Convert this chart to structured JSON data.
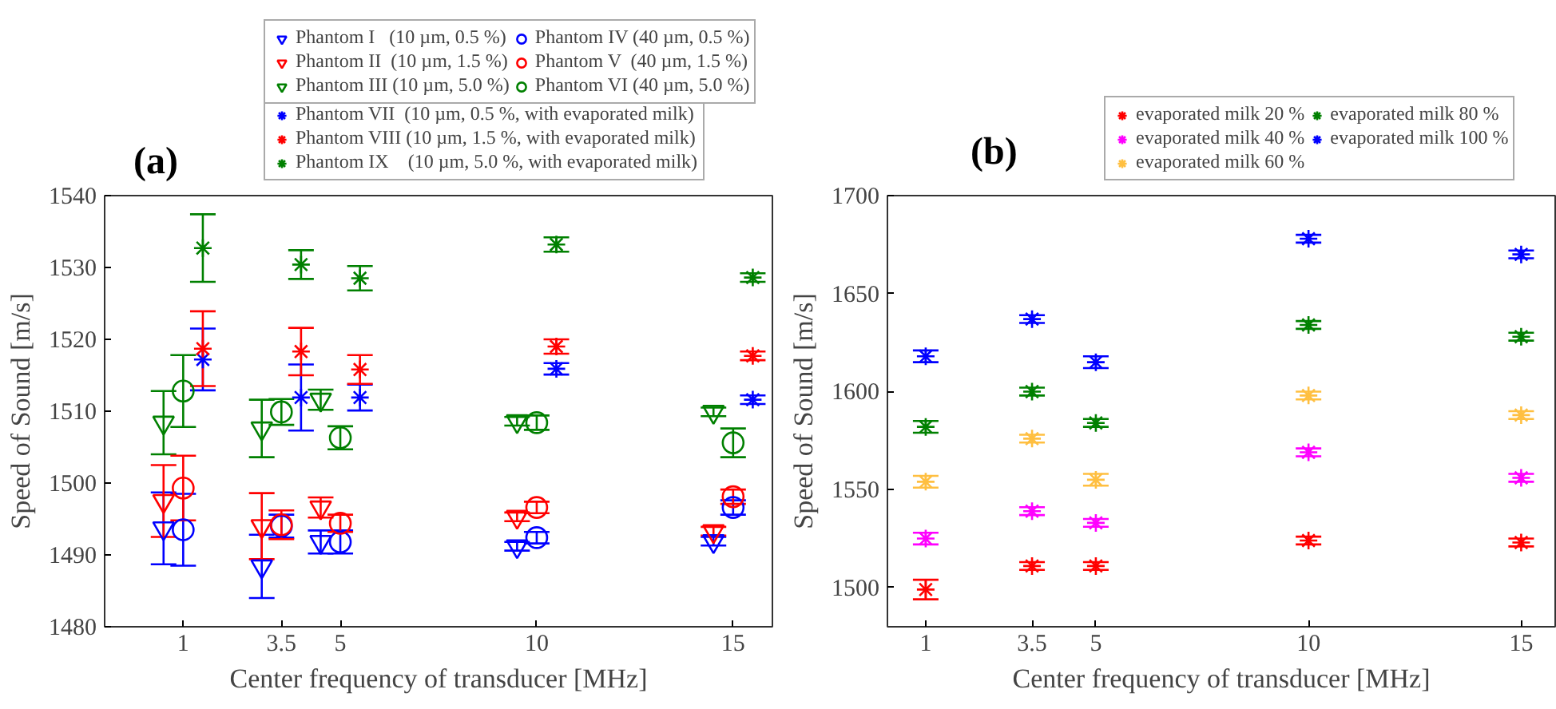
{
  "chart_data": [
    {
      "type": "scatter",
      "title": "(a)",
      "xlabel": "Center frequency of transducer [MHz]",
      "ylabel": "Speed of Sound [m/s]",
      "xlim": [
        -1,
        16
      ],
      "xticks": [
        1,
        3.5,
        5,
        10,
        15
      ],
      "ylim": [
        1480,
        1540
      ],
      "yticks": [
        1480,
        1490,
        1500,
        1510,
        1520,
        1530,
        1540
      ],
      "grid": false,
      "legend": "top",
      "series": [
        {
          "name": "Phantom I   (10 µm, 0.5 %)",
          "color": "#0000ff",
          "marker": "triangle",
          "x": [
            0.5,
            3,
            4.5,
            9.5,
            14.5
          ],
          "values": [
            1493.7,
            1488.4,
            1491.8,
            1491.2,
            1491.9
          ],
          "errors": [
            5,
            4.4,
            1.6,
            0.6,
            0.6
          ]
        },
        {
          "name": "Phantom II  (10 µm, 1.5 %)",
          "color": "#ff0000",
          "marker": "triangle",
          "x": [
            0.5,
            3,
            4.5,
            9.5,
            14.5
          ],
          "values": [
            1497.5,
            1494.0,
            1496.6,
            1495.3,
            1493.3
          ],
          "errors": [
            5,
            4.6,
            1.4,
            0.6,
            0.6
          ]
        },
        {
          "name": "Phantom III (10 µm, 5.0 %)",
          "color": "#008000",
          "marker": "triangle",
          "x": [
            0.5,
            3,
            4.5,
            9.5,
            14.5
          ],
          "values": [
            1508.4,
            1507.6,
            1511.6,
            1508.6,
            1509.9
          ],
          "errors": [
            4.4,
            4,
            1.4,
            0.6,
            0.6
          ]
        },
        {
          "name": "Phantom IV (40 µm, 0.5 %)",
          "color": "#0000ff",
          "marker": "circle",
          "x": [
            1,
            3.5,
            5,
            10,
            15
          ],
          "values": [
            1493.5,
            1494.0,
            1491.8,
            1492.4,
            1496.6
          ],
          "errors": [
            5,
            1.6,
            1.6,
            0.8,
            1
          ]
        },
        {
          "name": "Phantom V  (40 µm, 1.5 %)",
          "color": "#ff0000",
          "marker": "circle",
          "x": [
            1,
            3.5,
            5,
            10,
            15
          ],
          "values": [
            1499.3,
            1494.2,
            1494.4,
            1496.6,
            1498.1
          ],
          "errors": [
            4.5,
            2,
            1.2,
            0.8,
            1
          ]
        },
        {
          "name": "Phantom VI (40 µm, 5.0 %)",
          "color": "#008000",
          "marker": "circle",
          "x": [
            1,
            3.5,
            5,
            10,
            15
          ],
          "values": [
            1512.8,
            1509.9,
            1506.3,
            1508.4,
            1505.6
          ],
          "errors": [
            5,
            1.8,
            1.6,
            1,
            2
          ]
        },
        {
          "name": "Phantom VII  (10 µm, 0.5 %, with evaporated milk)",
          "color": "#0000ff",
          "marker": "cross",
          "x": [
            1.5,
            4,
            5.5,
            10.5,
            15.5
          ],
          "values": [
            1517.2,
            1511.9,
            1511.9,
            1515.9,
            1511.6
          ],
          "errors": [
            4.3,
            4.6,
            1.8,
            0.8,
            0.6
          ]
        },
        {
          "name": "Phantom VIII (10 µm, 1.5 %, with evaporated milk)",
          "color": "#ff0000",
          "marker": "cross",
          "x": [
            1.5,
            4,
            5.5,
            10.5,
            15.5
          ],
          "values": [
            1518.7,
            1518.3,
            1515.8,
            1519.0,
            1517.7
          ],
          "errors": [
            5.2,
            3.3,
            2,
            1,
            0.6
          ]
        },
        {
          "name": "Phantom IX    (10 µm, 5.0 %, with evaporated milk)",
          "color": "#008000",
          "marker": "cross",
          "x": [
            1.5,
            4,
            5.5,
            10.5,
            15.5
          ],
          "values": [
            1532.7,
            1530.4,
            1528.5,
            1533.2,
            1528.6
          ],
          "errors": [
            4.7,
            2,
            1.7,
            1,
            0.6
          ]
        }
      ]
    },
    {
      "type": "scatter",
      "title": "(b)",
      "xlabel": "Center frequency of transducer [MHz]",
      "ylabel": "Speed of Sound [m/s]",
      "xlim": [
        0.1,
        15.8
      ],
      "xticks": [
        1,
        3.5,
        5,
        10,
        15
      ],
      "ylim": [
        1480,
        1700
      ],
      "yticks": [
        1500,
        1550,
        1600,
        1650,
        1700
      ],
      "grid": false,
      "legend": "top",
      "series": [
        {
          "name": "evaporated milk 20 %",
          "color": "#ff0000",
          "marker": "cross",
          "x": [
            1,
            3.5,
            5,
            10,
            15
          ],
          "values": [
            1499,
            1511,
            1511,
            1524,
            1523
          ],
          "errors": [
            5,
            2,
            2,
            2,
            2
          ]
        },
        {
          "name": "evaporated milk 40 %",
          "color": "#ff00ff",
          "marker": "cross",
          "x": [
            1,
            3.5,
            5,
            10,
            15
          ],
          "values": [
            1525,
            1539,
            1533,
            1569,
            1556
          ],
          "errors": [
            3,
            2,
            2,
            2,
            2
          ]
        },
        {
          "name": "evaporated milk 60 %",
          "color": "#ffbf40",
          "marker": "cross",
          "x": [
            1,
            3.5,
            5,
            10,
            15
          ],
          "values": [
            1554,
            1576,
            1555,
            1598,
            1588
          ],
          "errors": [
            3,
            2,
            3,
            2,
            2
          ]
        },
        {
          "name": "evaporated milk 80 %",
          "color": "#008000",
          "marker": "cross",
          "x": [
            1,
            3.5,
            5,
            10,
            15
          ],
          "values": [
            1582,
            1600,
            1584,
            1634,
            1628
          ],
          "errors": [
            3,
            2,
            2,
            2,
            2
          ]
        },
        {
          "name": "evaporated milk 100 %",
          "color": "#0000ff",
          "marker": "cross",
          "x": [
            1,
            3.5,
            5,
            10,
            15
          ],
          "values": [
            1618,
            1637,
            1615,
            1678,
            1670
          ],
          "errors": [
            3,
            2,
            3,
            2,
            2
          ]
        }
      ]
    }
  ]
}
